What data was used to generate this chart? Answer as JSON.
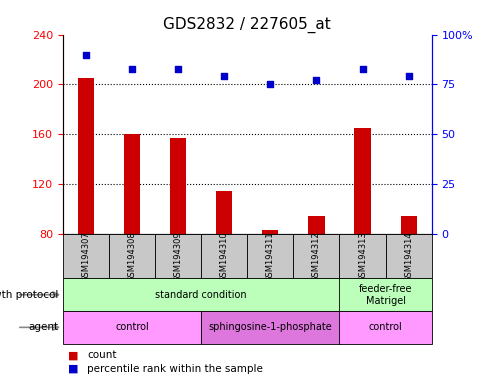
{
  "title": "GDS2832 / 227605_at",
  "samples": [
    "GSM194307",
    "GSM194308",
    "GSM194309",
    "GSM194310",
    "GSM194311",
    "GSM194312",
    "GSM194313",
    "GSM194314"
  ],
  "counts": [
    205,
    160,
    157,
    115,
    83,
    95,
    165,
    95
  ],
  "percentile_ranks": [
    90,
    83,
    83,
    79,
    75,
    77,
    83,
    79
  ],
  "ylim_left": [
    80,
    240
  ],
  "ylim_right": [
    0,
    100
  ],
  "yticks_left": [
    80,
    120,
    160,
    200,
    240
  ],
  "yticks_right": [
    0,
    25,
    50,
    75,
    100
  ],
  "bar_color": "#CC0000",
  "dot_color": "#0000CC",
  "growth_protocol_groups": [
    {
      "label": "standard condition",
      "start": 0,
      "end": 6,
      "color": "#BBFFBB"
    },
    {
      "label": "feeder-free\nMatrigel",
      "start": 6,
      "end": 8,
      "color": "#BBFFBB"
    }
  ],
  "agent_groups": [
    {
      "label": "control",
      "start": 0,
      "end": 3,
      "color": "#FF99FF"
    },
    {
      "label": "sphingosine-1-phosphate",
      "start": 3,
      "end": 6,
      "color": "#DD77DD"
    },
    {
      "label": "control",
      "start": 6,
      "end": 8,
      "color": "#FF99FF"
    }
  ],
  "legend_count_color": "#CC0000",
  "legend_dot_color": "#0000CC",
  "title_fontsize": 11,
  "tick_fontsize": 8,
  "sample_fontsize": 6,
  "label_fontsize": 7.5,
  "annot_fontsize": 7
}
